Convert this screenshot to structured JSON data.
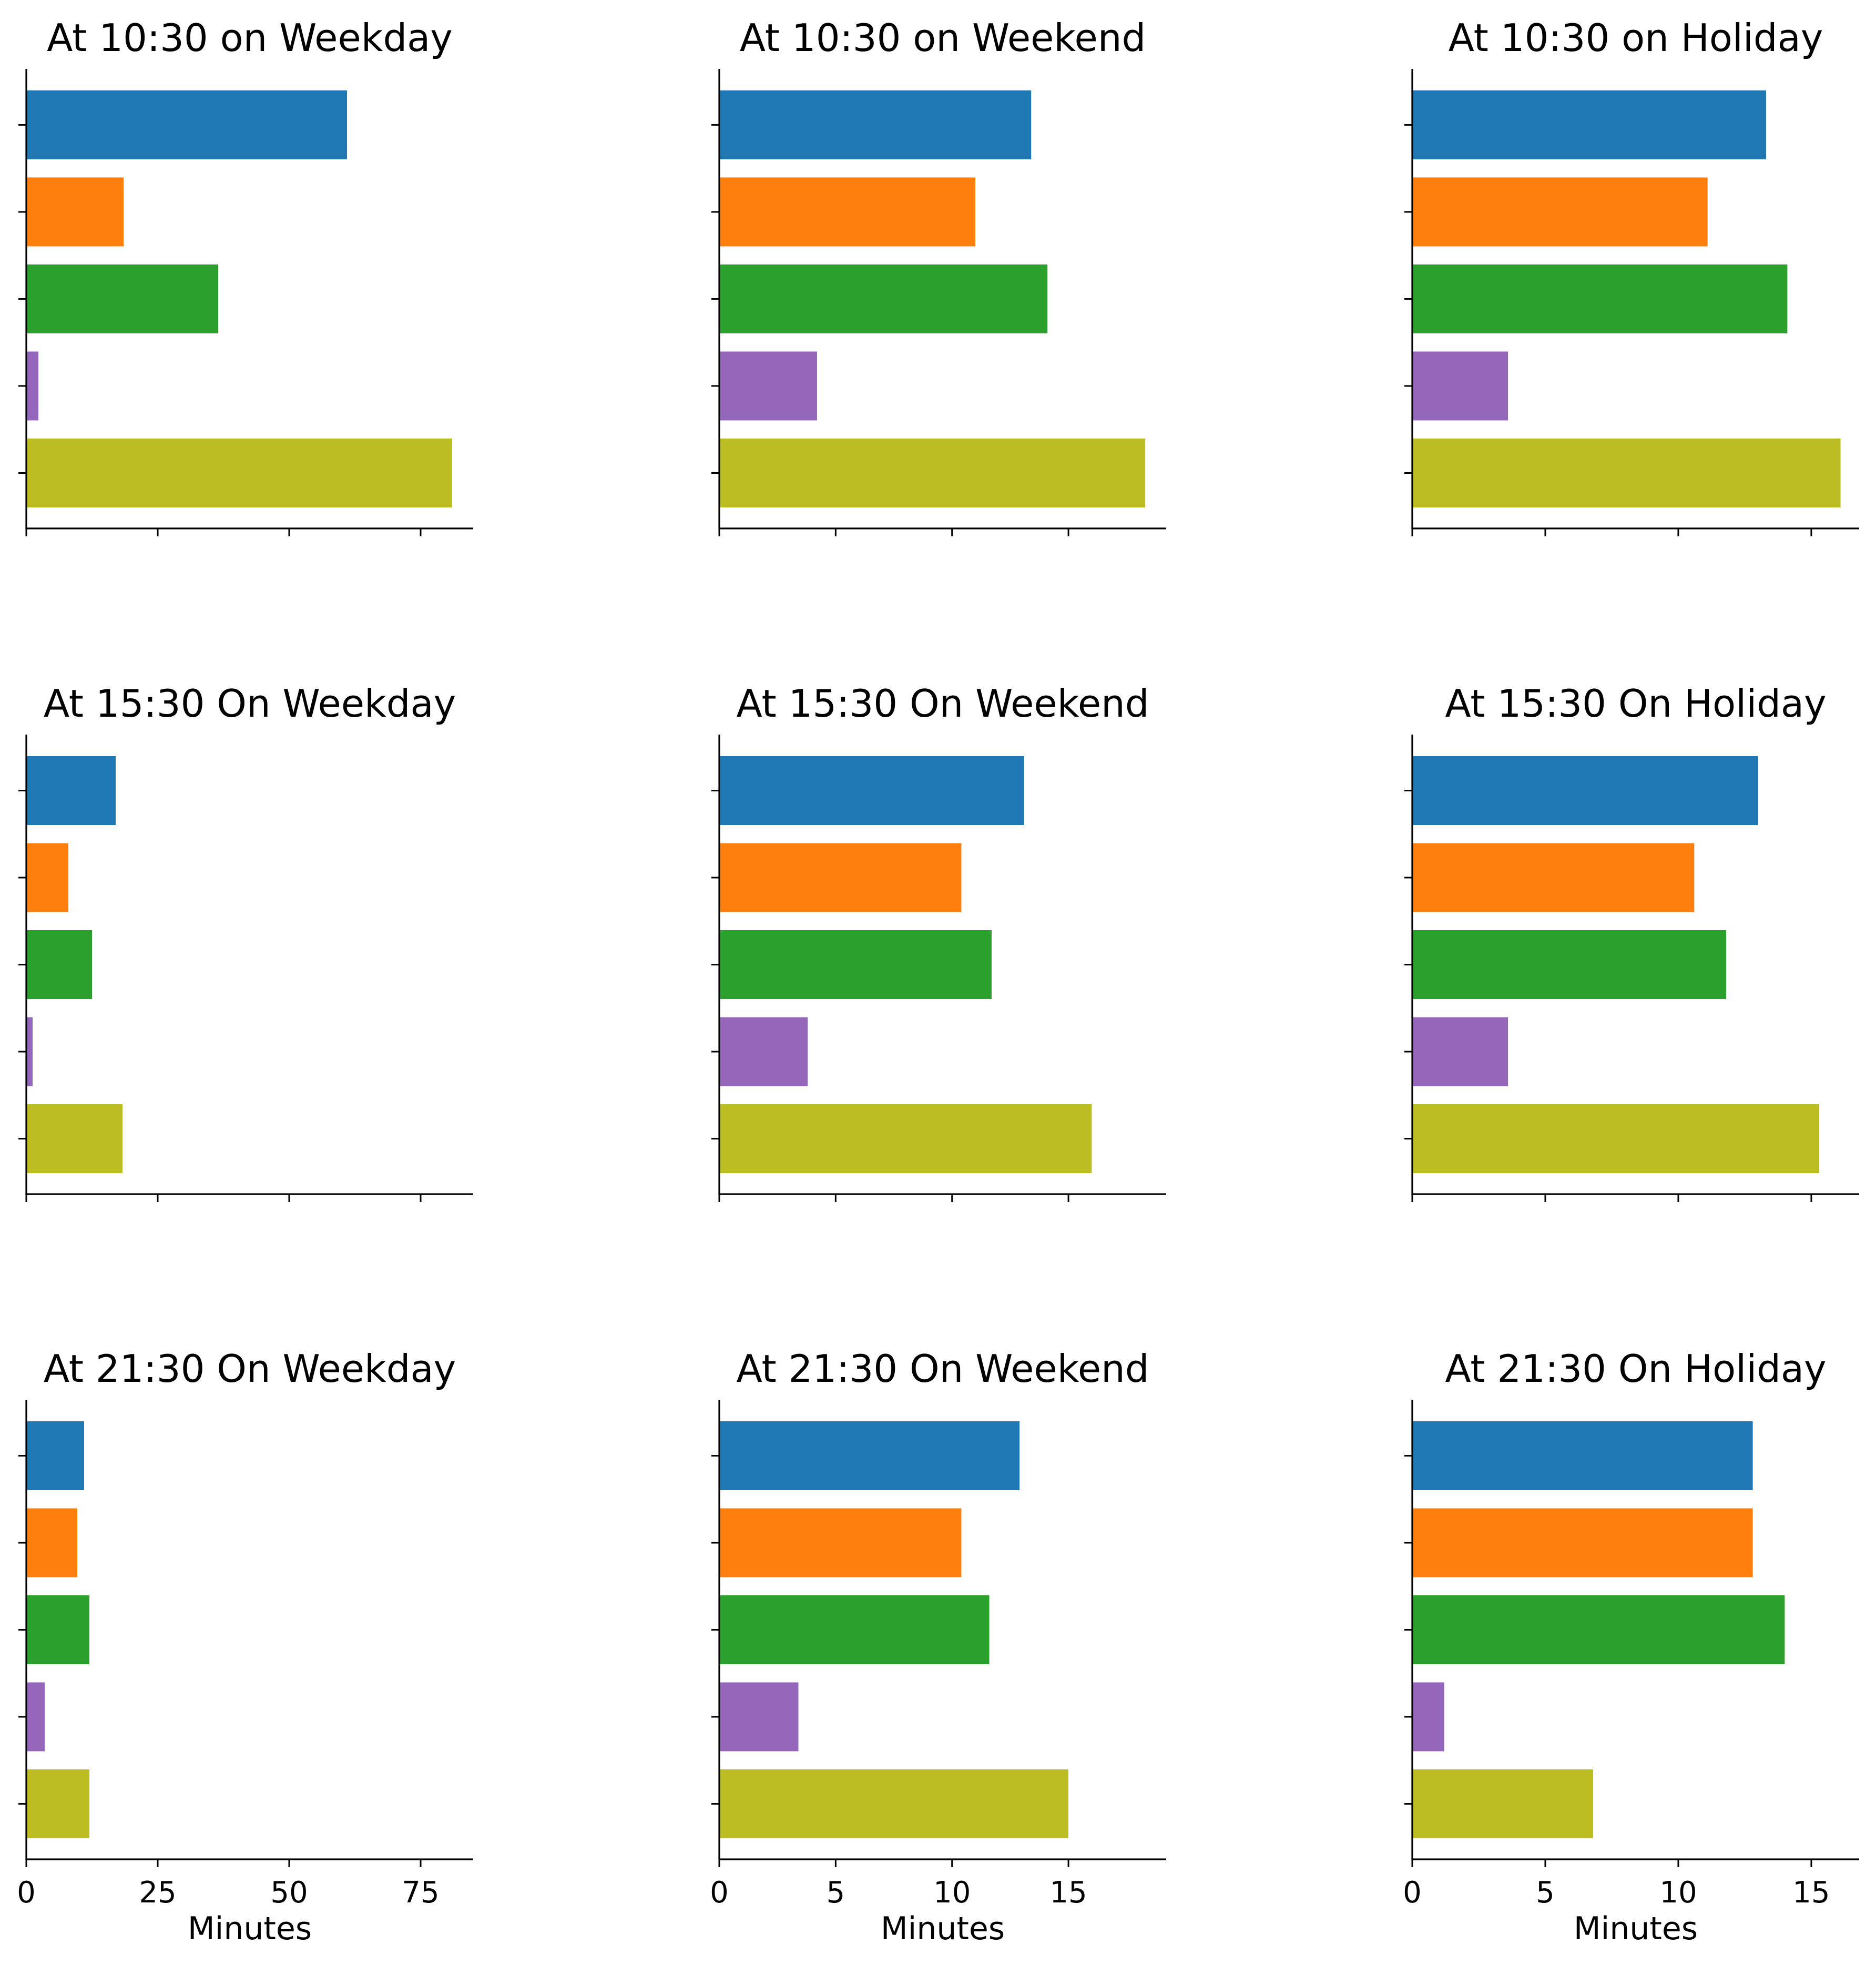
{
  "colors": [
    "#1f77b4",
    "#ff7f0e",
    "#2ca02c",
    "#9467bd",
    "#bcbd22"
  ],
  "chart_data": [
    {
      "type": "bar",
      "orientation": "horizontal",
      "title": "At 10:30 on Weekday",
      "xlabel": "",
      "xlim": [
        0,
        85
      ],
      "xticks": [
        0,
        25,
        50,
        75
      ],
      "show_tick_labels": false,
      "values": [
        61,
        18.5,
        36.5,
        2.3,
        81
      ]
    },
    {
      "type": "bar",
      "orientation": "horizontal",
      "title": "At 10:30 on Weekend",
      "xlabel": "",
      "xlim": [
        0,
        19.2
      ],
      "xticks": [
        0,
        5,
        10,
        15
      ],
      "show_tick_labels": false,
      "values": [
        13.4,
        11,
        14.1,
        4.2,
        18.3
      ]
    },
    {
      "type": "bar",
      "orientation": "horizontal",
      "title": "At 10:30 on Holiday",
      "xlabel": "",
      "xlim": [
        0,
        16.8
      ],
      "xticks": [
        0,
        5,
        10,
        15
      ],
      "show_tick_labels": false,
      "values": [
        13.3,
        11.1,
        14.1,
        3.6,
        16.1
      ]
    },
    {
      "type": "bar",
      "orientation": "horizontal",
      "title": "At 15:30 On Weekday",
      "xlabel": "",
      "xlim": [
        0,
        85
      ],
      "xticks": [
        0,
        25,
        50,
        75
      ],
      "show_tick_labels": false,
      "values": [
        17,
        8,
        12.5,
        1.2,
        18.3
      ]
    },
    {
      "type": "bar",
      "orientation": "horizontal",
      "title": "At 15:30 On Weekend",
      "xlabel": "",
      "xlim": [
        0,
        19.2
      ],
      "xticks": [
        0,
        5,
        10,
        15
      ],
      "show_tick_labels": false,
      "values": [
        13.1,
        10.4,
        11.7,
        3.8,
        16
      ]
    },
    {
      "type": "bar",
      "orientation": "horizontal",
      "title": "At 15:30 On Holiday",
      "xlabel": "",
      "xlim": [
        0,
        16.8
      ],
      "xticks": [
        0,
        5,
        10,
        15
      ],
      "show_tick_labels": false,
      "values": [
        13,
        10.6,
        11.8,
        3.6,
        15.3
      ]
    },
    {
      "type": "bar",
      "orientation": "horizontal",
      "title": "At 21:30 On Weekday",
      "xlabel": "Minutes",
      "xlim": [
        0,
        85
      ],
      "xticks": [
        0,
        25,
        50,
        75
      ],
      "show_tick_labels": true,
      "values": [
        11,
        9.7,
        12,
        3.5,
        12
      ]
    },
    {
      "type": "bar",
      "orientation": "horizontal",
      "title": "At 21:30 On Weekend",
      "xlabel": "Minutes",
      "xlim": [
        0,
        19.2
      ],
      "xticks": [
        0,
        5,
        10,
        15
      ],
      "show_tick_labels": true,
      "values": [
        12.9,
        10.4,
        11.6,
        3.4,
        15
      ]
    },
    {
      "type": "bar",
      "orientation": "horizontal",
      "title": "At 21:30 On Holiday",
      "xlabel": "Minutes",
      "xlim": [
        0,
        16.8
      ],
      "xticks": [
        0,
        5,
        10,
        15
      ],
      "show_tick_labels": true,
      "values": [
        12.8,
        12.8,
        14,
        1.2,
        6.8
      ]
    }
  ]
}
